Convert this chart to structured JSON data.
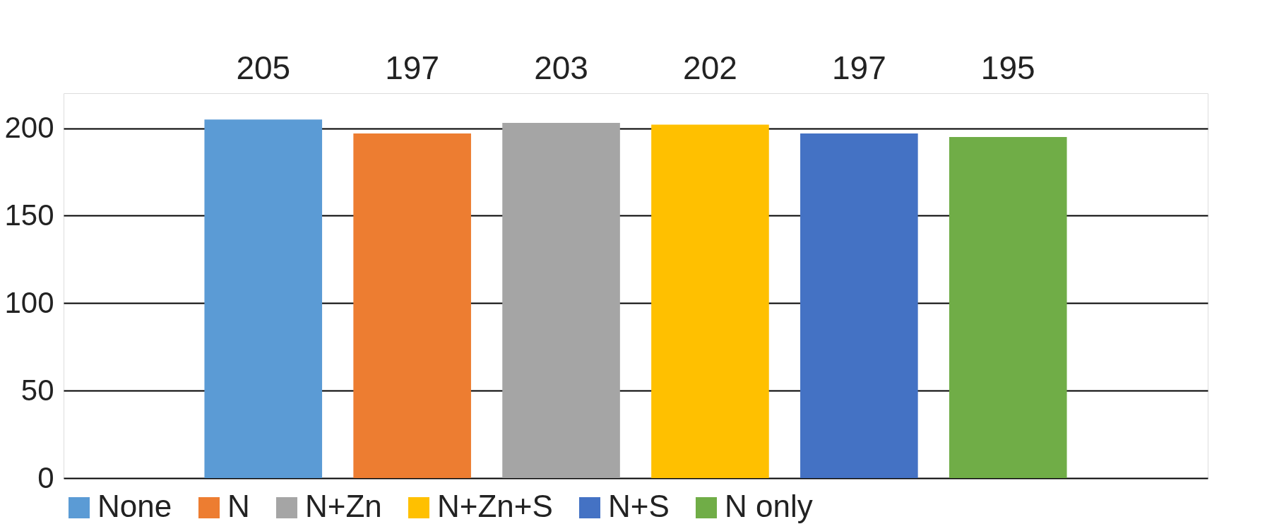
{
  "chart_data": {
    "type": "bar",
    "categories": [
      null
    ],
    "series": [
      {
        "name": "None",
        "color": "#5b9bd5",
        "values": [
          205
        ]
      },
      {
        "name": "N",
        "color": "#ed7d31",
        "values": [
          197
        ]
      },
      {
        "name": "N+Zn",
        "color": "#a5a5a5",
        "values": [
          203
        ]
      },
      {
        "name": "N+Zn+S",
        "color": "#ffc000",
        "values": [
          202
        ]
      },
      {
        "name": "N+S",
        "color": "#4472c4",
        "values": [
          197
        ]
      },
      {
        "name": "N only",
        "color": "#70ad47",
        "values": [
          195
        ]
      }
    ],
    "ylim": [
      0,
      220
    ],
    "yticks": [
      0,
      50,
      100,
      150,
      200
    ],
    "grid": "y",
    "legend": "bottom",
    "data_labels": true
  }
}
